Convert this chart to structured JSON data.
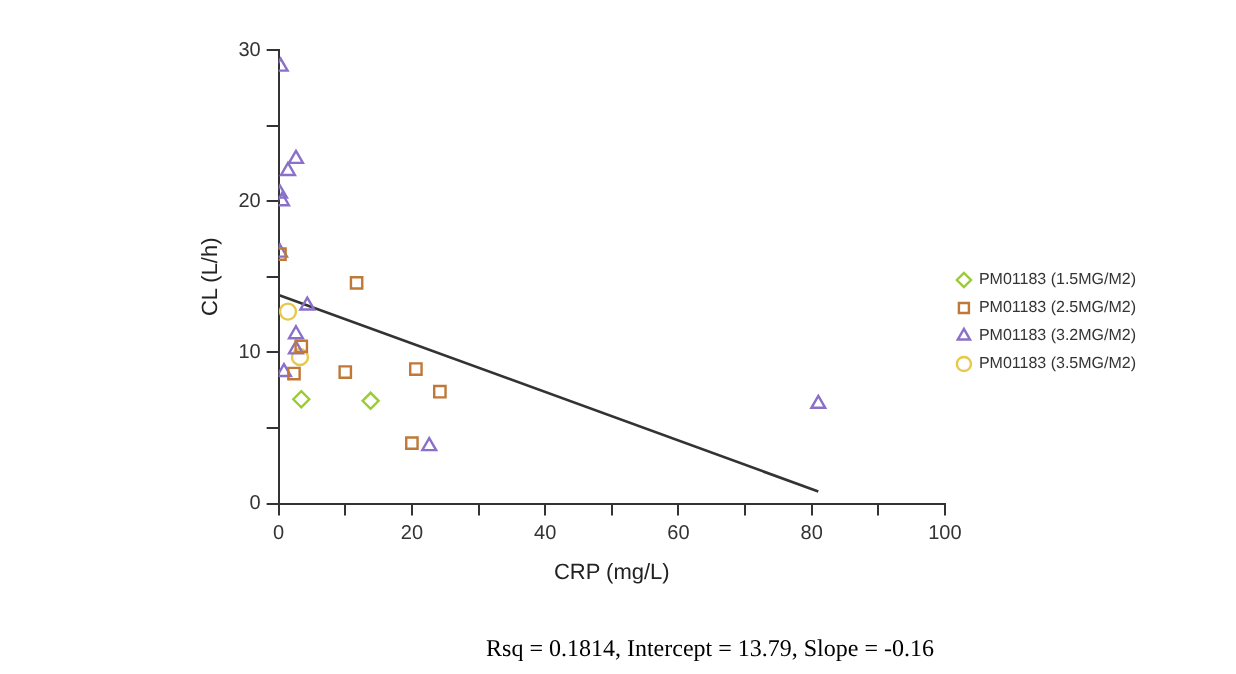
{
  "chart_data": {
    "type": "scatter",
    "xlabel": "CRP (mg/L)",
    "ylabel": "CL (L/h)",
    "xlim": [
      0,
      100
    ],
    "xticks": [
      0,
      {
        "value": 10,
        "label": null
      },
      20,
      {
        "value": 30,
        "label": null
      },
      40,
      {
        "value": 50,
        "label": null
      },
      60,
      {
        "value": 70,
        "label": null
      },
      80,
      {
        "value": 90,
        "label": null
      },
      100
    ],
    "ylim": [
      0,
      30
    ],
    "yticks": [
      0,
      {
        "value": 5,
        "label": null
      },
      10,
      {
        "value": 15,
        "label": null
      },
      20,
      {
        "value": 25,
        "label": null
      },
      30
    ],
    "grid": false,
    "legend": "right",
    "annotations": [
      "Rsq = 0.1814, Intercept = 13.79, Slope = -0.16"
    ],
    "series": [
      {
        "name": "PM01183 (1.5MG/M2)",
        "color": "#99cc33",
        "marker": "diamond",
        "x": [
          3.4,
          13.8
        ],
        "values": [
          6.9,
          6.8
        ]
      },
      {
        "name": "PM01183 (2.5MG/M2)",
        "color": "#c07838",
        "marker": "square",
        "x": [
          0.2,
          11.7,
          3.4,
          2.3,
          10,
          20.6,
          24.2,
          20
        ],
        "values": [
          16.5,
          14.6,
          10.4,
          8.6,
          8.7,
          8.9,
          7.4,
          4.0
        ]
      },
      {
        "name": "PM01183 (3.2MG/M2)",
        "color": "#8a70c8",
        "marker": "triangle",
        "x": [
          0.3,
          2.6,
          1.4,
          0.2,
          0.5,
          0.2,
          4.3,
          2.6,
          0.8,
          2.6,
          22.6,
          81
        ],
        "values": [
          28.9,
          22.8,
          22.0,
          20.5,
          20.0,
          16.6,
          13.1,
          11.2,
          8.7,
          10.2,
          3.8,
          6.6
        ]
      },
      {
        "name": "PM01183 (3.5MG/M2)",
        "color": "#e8c84a",
        "marker": "circle",
        "x": [
          1.4,
          3.2
        ],
        "values": [
          12.7,
          9.7
        ]
      },
      {
        "type": "line",
        "color": "#333333",
        "marker": "none",
        "x": [
          0,
          81
        ],
        "values": [
          13.8,
          0.8
        ]
      }
    ]
  }
}
